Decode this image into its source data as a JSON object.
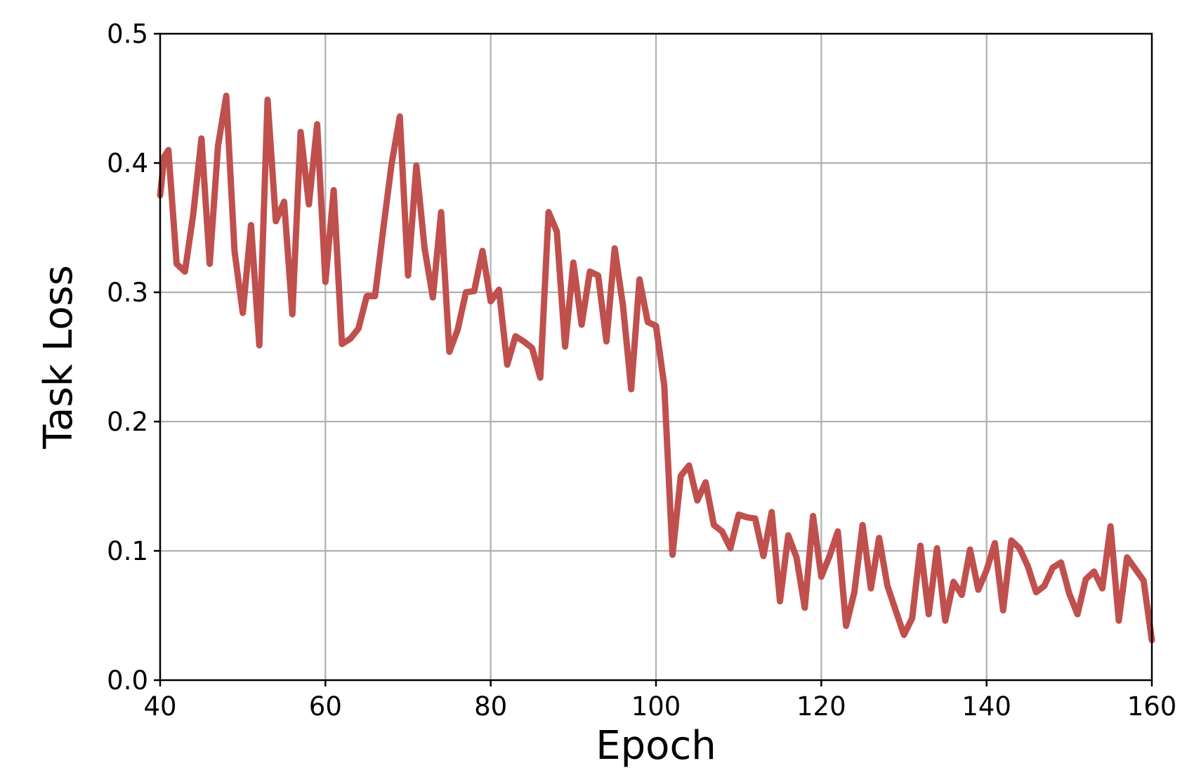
{
  "chart_data": {
    "type": "line",
    "title": "",
    "xlabel": "Epoch",
    "ylabel": "Task Loss",
    "xlim": [
      40,
      160
    ],
    "ylim": [
      0.0,
      0.5
    ],
    "x_ticks": [
      40,
      60,
      80,
      100,
      120,
      140,
      160
    ],
    "y_ticks": [
      0.0,
      0.1,
      0.2,
      0.3,
      0.4,
      0.5
    ],
    "x_tick_labels": [
      "40",
      "60",
      "80",
      "100",
      "120",
      "140",
      "160"
    ],
    "y_tick_labels": [
      "0.0",
      "0.1",
      "0.2",
      "0.3",
      "0.4",
      "0.5"
    ],
    "grid": true,
    "legend": false,
    "series": [
      {
        "color": "#c0504d",
        "x": [
          40,
          40.5,
          41,
          42,
          43,
          44,
          45,
          46,
          47,
          48,
          49,
          50,
          51,
          52,
          53,
          54,
          55,
          56,
          57,
          58,
          59,
          60,
          61,
          62,
          63,
          64,
          65,
          66,
          67,
          68,
          69,
          70,
          71,
          72,
          73,
          74,
          75,
          76,
          77,
          78,
          79,
          80,
          81,
          82,
          83,
          84,
          85,
          86,
          87,
          88,
          89,
          90,
          91,
          92,
          93,
          94,
          95,
          96,
          97,
          98,
          99,
          100,
          101,
          102,
          103,
          104,
          105,
          106,
          107,
          108,
          109,
          110,
          111,
          112,
          113,
          114,
          115,
          116,
          117,
          118,
          119,
          120,
          121,
          122,
          123,
          124,
          125,
          126,
          127,
          128,
          129,
          130,
          131,
          132,
          133,
          134,
          135,
          136,
          137,
          138,
          139,
          140,
          141,
          142,
          143,
          144,
          145,
          146,
          147,
          148,
          149,
          150,
          151,
          152,
          153,
          154,
          155,
          156,
          157,
          158,
          159,
          160
        ],
        "y": [
          0.375,
          0.405,
          0.41,
          0.322,
          0.316,
          0.36,
          0.419,
          0.322,
          0.413,
          0.452,
          0.332,
          0.284,
          0.352,
          0.259,
          0.449,
          0.355,
          0.37,
          0.283,
          0.424,
          0.368,
          0.43,
          0.308,
          0.379,
          0.26,
          0.264,
          0.272,
          0.297,
          0.297,
          0.349,
          0.399,
          0.436,
          0.313,
          0.398,
          0.334,
          0.296,
          0.362,
          0.254,
          0.271,
          0.3,
          0.301,
          0.332,
          0.293,
          0.302,
          0.244,
          0.266,
          0.262,
          0.257,
          0.234,
          0.362,
          0.347,
          0.258,
          0.323,
          0.275,
          0.316,
          0.313,
          0.262,
          0.334,
          0.29,
          0.225,
          0.31,
          0.277,
          0.274,
          0.228,
          0.097,
          0.158,
          0.166,
          0.139,
          0.153,
          0.12,
          0.115,
          0.102,
          0.128,
          0.126,
          0.125,
          0.096,
          0.13,
          0.061,
          0.112,
          0.095,
          0.056,
          0.127,
          0.08,
          0.096,
          0.115,
          0.042,
          0.068,
          0.12,
          0.071,
          0.11,
          0.073,
          0.054,
          0.035,
          0.048,
          0.104,
          0.051,
          0.102,
          0.046,
          0.076,
          0.066,
          0.101,
          0.07,
          0.085,
          0.106,
          0.054,
          0.108,
          0.102,
          0.088,
          0.068,
          0.073,
          0.087,
          0.091,
          0.067,
          0.051,
          0.078,
          0.084,
          0.071,
          0.119,
          0.046,
          0.095,
          0.086,
          0.077,
          0.031
        ]
      }
    ]
  }
}
